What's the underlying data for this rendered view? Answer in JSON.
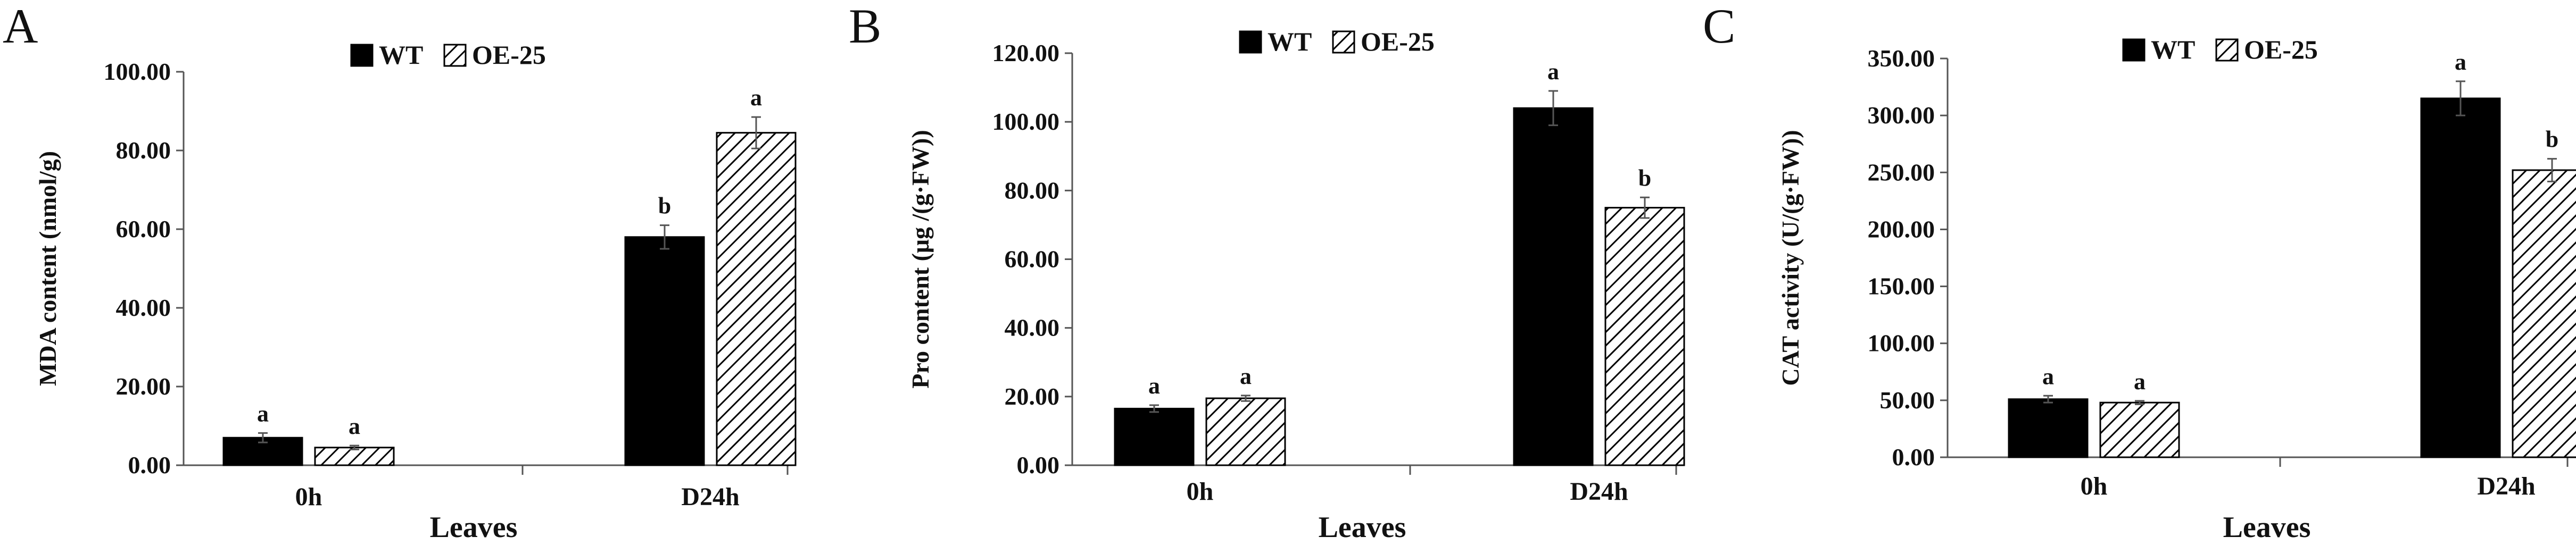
{
  "colors": {
    "wt": "#000000",
    "oe": "#ffffff",
    "axis": "#555555",
    "hatch": "#000000"
  },
  "chart_data": [
    {
      "panel": "A",
      "type": "bar",
      "categories": [
        "0h",
        "D24h"
      ],
      "xlabel": "Leaves",
      "ylabel": "MDA content (nmol/g)",
      "ylim": [
        0,
        100
      ],
      "yticks": [
        "0.00",
        "20.00",
        "40.00",
        "60.00",
        "80.00",
        "100.00"
      ],
      "legend": {
        "position": "top-center",
        "entries": [
          "WT",
          "OE-25"
        ]
      },
      "series": [
        {
          "name": "WT",
          "style": "solid",
          "values": [
            7.0,
            58.0
          ],
          "errors": [
            1.2,
            3.0
          ],
          "labels": [
            "a",
            "b"
          ]
        },
        {
          "name": "OE-25",
          "style": "hatch",
          "values": [
            4.5,
            84.5
          ],
          "errors": [
            0.5,
            4.0
          ],
          "labels": [
            "a",
            "a"
          ]
        }
      ]
    },
    {
      "panel": "B",
      "type": "bar",
      "categories": [
        "0h",
        "D24h"
      ],
      "xlabel": "Leaves",
      "ylabel": "Pro content (μg /(g·FW))",
      "ylim": [
        0,
        120
      ],
      "yticks": [
        "0.00",
        "20.00",
        "40.00",
        "60.00",
        "80.00",
        "100.00",
        "120.00"
      ],
      "legend": {
        "position": "top-center",
        "entries": [
          "WT",
          "OE-25"
        ]
      },
      "series": [
        {
          "name": "WT",
          "style": "solid",
          "values": [
            16.5,
            104.0
          ],
          "errors": [
            1.0,
            5.0
          ],
          "labels": [
            "a",
            "a"
          ]
        },
        {
          "name": "OE-25",
          "style": "hatch",
          "values": [
            19.5,
            75.0
          ],
          "errors": [
            0.8,
            3.0
          ],
          "labels": [
            "a",
            "b"
          ]
        }
      ]
    },
    {
      "panel": "C",
      "type": "bar",
      "categories": [
        "0h",
        "D24h"
      ],
      "xlabel": "Leaves",
      "ylabel": "CAT activity (U/(g·FW))",
      "ylim": [
        0,
        350
      ],
      "yticks": [
        "0.00",
        "50.00",
        "100.00",
        "150.00",
        "200.00",
        "250.00",
        "300.00",
        "350.00"
      ],
      "legend": {
        "position": "top-center",
        "entries": [
          "WT",
          "OE-25"
        ]
      },
      "series": [
        {
          "name": "WT",
          "style": "solid",
          "values": [
            51.0,
            315.0
          ],
          "errors": [
            3.0,
            15.0
          ],
          "labels": [
            "a",
            "a"
          ]
        },
        {
          "name": "OE-25",
          "style": "hatch",
          "values": [
            48.0,
            252.0
          ],
          "errors": [
            1.5,
            10.0
          ],
          "labels": [
            "a",
            "b"
          ]
        }
      ]
    }
  ]
}
